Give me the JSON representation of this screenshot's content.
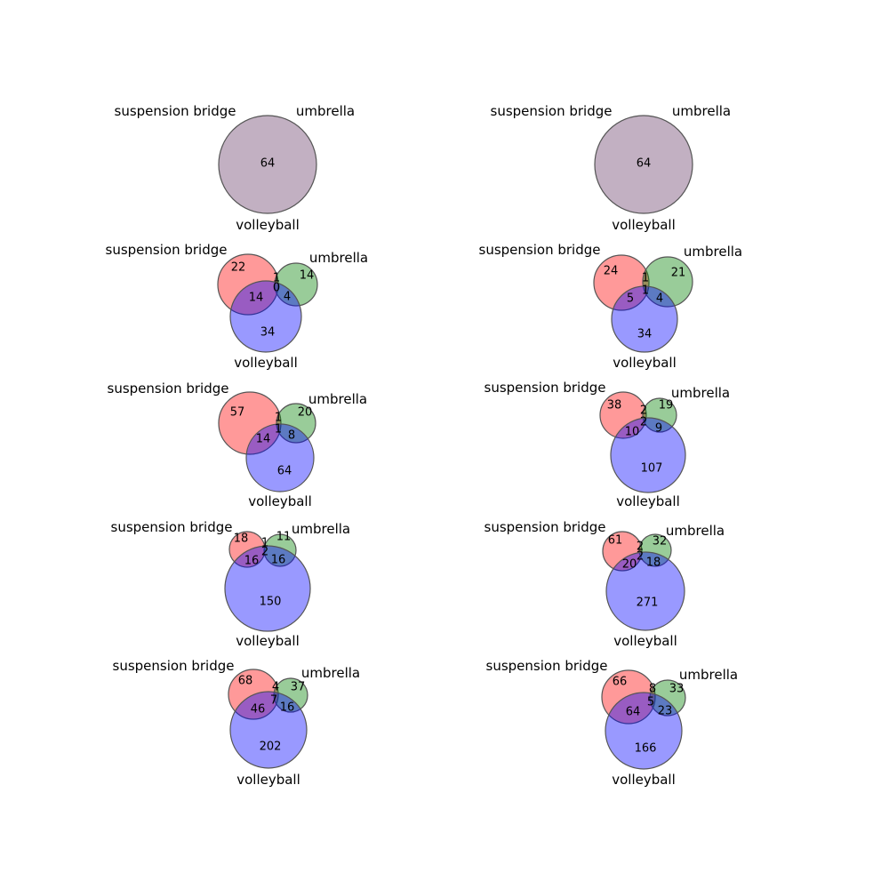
{
  "colors": {
    "suspension_bridge": "#ff0000",
    "umbrella": "#008000",
    "volleyball": "#0000ff",
    "single_set_panel": "#673a67"
  },
  "panels": [
    {
      "labels": {
        "a": "suspension bridge",
        "b": "umbrella",
        "c": "volleyball"
      },
      "regions": [
        {
          "region": "abc",
          "value": "64"
        }
      ]
    },
    {
      "labels": {
        "a": "suspension bridge",
        "b": "umbrella",
        "c": "volleyball"
      },
      "regions": [
        {
          "region": "abc",
          "value": "64"
        }
      ]
    },
    {
      "labels": {
        "a": "suspension bridge",
        "b": "umbrella",
        "c": "volleyball"
      },
      "regions": [
        {
          "region": "a",
          "value": "22"
        },
        {
          "region": "b",
          "value": "14"
        },
        {
          "region": "ab",
          "value": "1"
        },
        {
          "region": "abc",
          "value": "0"
        },
        {
          "region": "ac",
          "value": "14"
        },
        {
          "region": "bc",
          "value": "4"
        },
        {
          "region": "c",
          "value": "34"
        }
      ]
    },
    {
      "labels": {
        "a": "suspension bridge",
        "b": "umbrella",
        "c": "volleyball"
      },
      "regions": [
        {
          "region": "a",
          "value": "24"
        },
        {
          "region": "b",
          "value": "21"
        },
        {
          "region": "ab",
          "value": "1"
        },
        {
          "region": "abc",
          "value": "1"
        },
        {
          "region": "ac",
          "value": "5"
        },
        {
          "region": "bc",
          "value": "4"
        },
        {
          "region": "c",
          "value": "34"
        }
      ]
    },
    {
      "labels": {
        "a": "suspension bridge",
        "b": "umbrella",
        "c": "volleyball"
      },
      "regions": [
        {
          "region": "a",
          "value": "57"
        },
        {
          "region": "b",
          "value": "20"
        },
        {
          "region": "ab",
          "value": "1"
        },
        {
          "region": "abc",
          "value": "1"
        },
        {
          "region": "ac",
          "value": "14"
        },
        {
          "region": "bc",
          "value": "8"
        },
        {
          "region": "c",
          "value": "64"
        }
      ]
    },
    {
      "labels": {
        "a": "suspension bridge",
        "b": "umbrella",
        "c": "volleyball"
      },
      "regions": [
        {
          "region": "a",
          "value": "38"
        },
        {
          "region": "b",
          "value": "19"
        },
        {
          "region": "ab",
          "value": "2"
        },
        {
          "region": "abc",
          "value": "2"
        },
        {
          "region": "ac",
          "value": "10"
        },
        {
          "region": "bc",
          "value": "9"
        },
        {
          "region": "c",
          "value": "107"
        }
      ]
    },
    {
      "labels": {
        "a": "suspension bridge",
        "b": "umbrella",
        "c": "volleyball"
      },
      "regions": [
        {
          "region": "a",
          "value": "18"
        },
        {
          "region": "b",
          "value": "11"
        },
        {
          "region": "ab",
          "value": "1"
        },
        {
          "region": "abc",
          "value": "2"
        },
        {
          "region": "ac",
          "value": "16"
        },
        {
          "region": "bc",
          "value": "16"
        },
        {
          "region": "c",
          "value": "150"
        }
      ]
    },
    {
      "labels": {
        "a": "suspension bridge",
        "b": "umbrella",
        "c": "volleyball"
      },
      "regions": [
        {
          "region": "a",
          "value": "61"
        },
        {
          "region": "b",
          "value": "32"
        },
        {
          "region": "ab",
          "value": "2"
        },
        {
          "region": "abc",
          "value": "2"
        },
        {
          "region": "ac",
          "value": "20"
        },
        {
          "region": "bc",
          "value": "18"
        },
        {
          "region": "c",
          "value": "271"
        }
      ]
    },
    {
      "labels": {
        "a": "suspension bridge",
        "b": "umbrella",
        "c": "volleyball"
      },
      "regions": [
        {
          "region": "a",
          "value": "68"
        },
        {
          "region": "b",
          "value": "37"
        },
        {
          "region": "ab",
          "value": "4"
        },
        {
          "region": "abc",
          "value": "7"
        },
        {
          "region": "ac",
          "value": "46"
        },
        {
          "region": "bc",
          "value": "16"
        },
        {
          "region": "c",
          "value": "202"
        }
      ]
    },
    {
      "labels": {
        "a": "suspension bridge",
        "b": "umbrella",
        "c": "volleyball"
      },
      "regions": [
        {
          "region": "a",
          "value": "66"
        },
        {
          "region": "b",
          "value": "33"
        },
        {
          "region": "ab",
          "value": "8"
        },
        {
          "region": "abc",
          "value": "5"
        },
        {
          "region": "ac",
          "value": "64"
        },
        {
          "region": "bc",
          "value": "23"
        },
        {
          "region": "c",
          "value": "166"
        }
      ]
    }
  ]
}
